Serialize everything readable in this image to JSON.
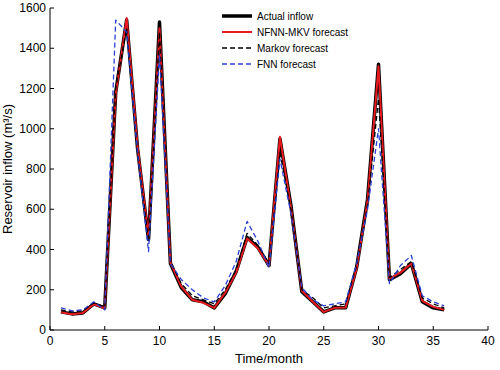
{
  "chart_data": {
    "type": "line",
    "x_label": "Time/month",
    "y_label": "Reservoir inflow (m³/s)",
    "x": [
      1,
      2,
      3,
      4,
      5,
      6,
      7,
      8,
      9,
      10,
      11,
      12,
      13,
      14,
      15,
      16,
      17,
      18,
      19,
      20,
      21,
      22,
      23,
      24,
      25,
      26,
      27,
      28,
      29,
      30,
      31,
      32,
      33,
      34,
      35,
      36
    ],
    "series": [
      {
        "name": "Actual inflow",
        "color": "#000000",
        "line_style": "solid",
        "values": [
          90,
          80,
          85,
          130,
          110,
          1180,
          1540,
          900,
          450,
          1530,
          330,
          210,
          150,
          140,
          110,
          180,
          290,
          460,
          410,
          320,
          950,
          620,
          190,
          140,
          90,
          110,
          110,
          310,
          650,
          1320,
          250,
          280,
          330,
          140,
          110,
          100
        ]
      },
      {
        "name": "NFNN-MKV forecast",
        "color": "#e8191f",
        "line_style": "solid",
        "values": [
          88,
          78,
          85,
          128,
          108,
          1170,
          1550,
          910,
          460,
          1500,
          335,
          215,
          150,
          135,
          110,
          185,
          285,
          455,
          405,
          320,
          960,
          610,
          195,
          140,
          90,
          110,
          112,
          305,
          640,
          1310,
          255,
          285,
          330,
          145,
          115,
          100
        ]
      },
      {
        "name": "Markov forecast",
        "color": "#000000",
        "line_style": "dashed",
        "values": [
          100,
          90,
          95,
          135,
          115,
          1200,
          1500,
          890,
          440,
          1480,
          340,
          230,
          170,
          150,
          130,
          200,
          300,
          480,
          420,
          330,
          880,
          600,
          200,
          160,
          110,
          120,
          130,
          320,
          620,
          1150,
          260,
          300,
          340,
          160,
          130,
          110
        ]
      },
      {
        "name": "FNN forecast",
        "color": "#2a3fd6",
        "line_style": "dashed",
        "values": [
          110,
          95,
          100,
          140,
          100,
          1540,
          1480,
          880,
          390,
          1370,
          330,
          250,
          200,
          160,
          140,
          220,
          340,
          540,
          440,
          310,
          850,
          580,
          210,
          150,
          120,
          130,
          140,
          330,
          600,
          1000,
          230,
          320,
          370,
          170,
          140,
          120
        ]
      }
    ],
    "xlim": [
      0,
      40
    ],
    "xticks": [
      0,
      5,
      10,
      15,
      20,
      25,
      30,
      35,
      40
    ],
    "ylim": [
      0,
      1600
    ],
    "yticks": [
      0,
      200,
      400,
      600,
      800,
      1000,
      1200,
      1400,
      1600
    ],
    "grid": false,
    "legend": "top"
  }
}
